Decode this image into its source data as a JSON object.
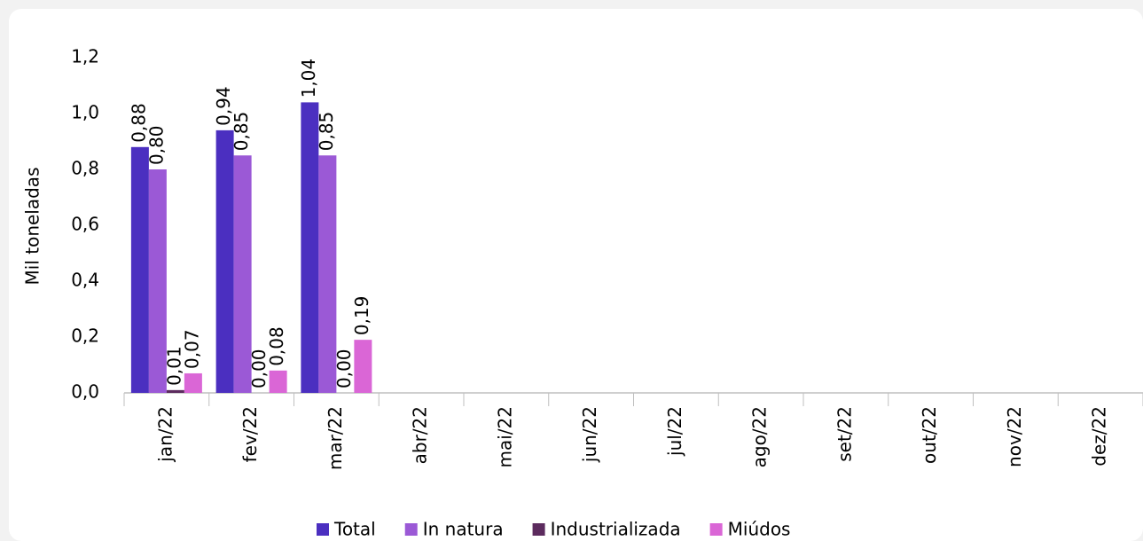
{
  "chart_data": {
    "type": "bar",
    "y_label": "Mil toneladas",
    "categories": [
      "jan/22",
      "fev/22",
      "mar/22",
      "abr/22",
      "mai/22",
      "jun/22",
      "jul/22",
      "ago/22",
      "set/22",
      "out/22",
      "nov/22",
      "dez/22"
    ],
    "series": [
      {
        "name": "Total",
        "color": "#4b2fc0",
        "values": [
          0.88,
          0.94,
          1.04,
          null,
          null,
          null,
          null,
          null,
          null,
          null,
          null,
          null
        ],
        "value_labels": [
          "0,88",
          "0,94",
          "1,04",
          null,
          null,
          null,
          null,
          null,
          null,
          null,
          null,
          null
        ]
      },
      {
        "name": "In natura",
        "color": "#9b59d6",
        "values": [
          0.8,
          0.85,
          0.85,
          null,
          null,
          null,
          null,
          null,
          null,
          null,
          null,
          null
        ],
        "value_labels": [
          "0,80",
          "0,85",
          "0,85",
          null,
          null,
          null,
          null,
          null,
          null,
          null,
          null,
          null
        ]
      },
      {
        "name": "Industrializada",
        "color": "#5c2b5e",
        "values": [
          0.01,
          0.0,
          0.0,
          null,
          null,
          null,
          null,
          null,
          null,
          null,
          null,
          null
        ],
        "value_labels": [
          "0,01",
          "0,00",
          "0,00",
          null,
          null,
          null,
          null,
          null,
          null,
          null,
          null,
          null
        ]
      },
      {
        "name": "Miúdos",
        "color": "#da66d6",
        "values": [
          0.07,
          0.08,
          0.19,
          null,
          null,
          null,
          null,
          null,
          null,
          null,
          null,
          null
        ],
        "value_labels": [
          "0,07",
          "0,08",
          "0,19",
          null,
          null,
          null,
          null,
          null,
          null,
          null,
          null,
          null
        ]
      }
    ],
    "ylim": [
      0,
      1.2
    ],
    "yticks": [
      {
        "value": 0,
        "label": "0,0"
      },
      {
        "value": 0.2,
        "label": "0,2"
      },
      {
        "value": 0.4,
        "label": "0,4"
      },
      {
        "value": 0.6,
        "label": "0,6"
      },
      {
        "value": 0.8,
        "label": "0,8"
      },
      {
        "value": 1.0,
        "label": "1,0"
      },
      {
        "value": 1.2,
        "label": "1,2"
      }
    ],
    "grid": false,
    "legend": "bottom"
  }
}
